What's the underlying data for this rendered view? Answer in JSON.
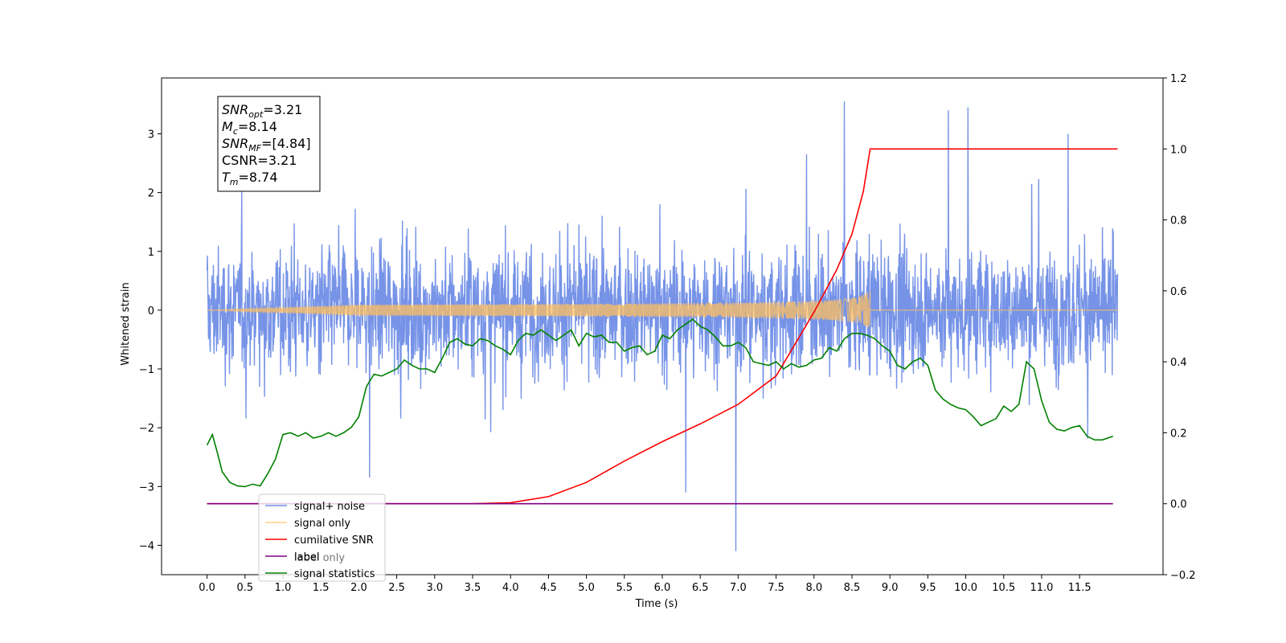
{
  "chart_data": {
    "type": "line",
    "title": "",
    "xlabel": "Time (s)",
    "ylabel": "Whitened strain",
    "y2label": "",
    "xlim": [
      -0.6,
      12.6
    ],
    "ylim": [
      -4.5,
      3.95
    ],
    "y2lim": [
      -0.2,
      1.2
    ],
    "xticks": [
      "0.0",
      "0.5",
      "1.0",
      "1.5",
      "2.0",
      "2.5",
      "3.0",
      "3.5",
      "4.0",
      "4.5",
      "5.0",
      "5.5",
      "6.0",
      "6.5",
      "7.0",
      "7.5",
      "8.0",
      "8.5",
      "9.0",
      "9.5",
      "10.0",
      "10.5",
      "11.0",
      "11.5"
    ],
    "yticks": [
      "−4",
      "−3",
      "−2",
      "−1",
      "0",
      "1",
      "2",
      "3"
    ],
    "y2ticks": [
      "−0.2",
      "0.0",
      "0.2",
      "0.4",
      "0.6",
      "0.8",
      "1.0",
      "1.2"
    ],
    "grid": false,
    "legend_position": "lower-left",
    "info_box": {
      "lines": [
        {
          "main": "SNR",
          "sub": "opt",
          "value": "=3.21"
        },
        {
          "main": "M",
          "sub": "c",
          "value": "=8.14"
        },
        {
          "main": "SNR",
          "sub": "MF",
          "value": "=[4.84]"
        },
        {
          "main": "CSNR",
          "sub": "",
          "value": "=3.21"
        },
        {
          "main": "T",
          "sub": "m",
          "value": "=8.74"
        }
      ]
    },
    "series": [
      {
        "name": "signal+ noise",
        "color": "#6f8de6",
        "axis": "left",
        "kind": "noise",
        "x_range": [
          0.0,
          12.0
        ],
        "envelope": [
          -2.0,
          2.3
        ],
        "outliers": [
          [
            6.97,
            -4.1
          ],
          [
            8.4,
            3.55
          ],
          [
            9.77,
            3.4
          ],
          [
            10.03,
            3.45
          ],
          [
            2.14,
            -2.85
          ],
          [
            6.31,
            -3.1
          ],
          [
            7.9,
            2.65
          ],
          [
            11.35,
            3.0
          ]
        ]
      },
      {
        "name": "signal only",
        "color": "#ffbf60",
        "axis": "left",
        "kind": "chirp",
        "x_range": [
          0.0,
          8.74
        ],
        "end_amplitude": 0.4
      },
      {
        "name": "cumilative SNR",
        "color": "#ff0000",
        "axis": "right",
        "x": [
          0.0,
          3.5,
          4.0,
          4.5,
          5.0,
          5.5,
          6.0,
          6.5,
          7.0,
          7.5,
          8.0,
          8.3,
          8.5,
          8.65,
          8.74,
          12.0
        ],
        "values": [
          0.0,
          0.0,
          0.003,
          0.02,
          0.06,
          0.12,
          0.175,
          0.225,
          0.28,
          0.36,
          0.54,
          0.66,
          0.76,
          0.88,
          1.0,
          1.0
        ]
      },
      {
        "name": "label",
        "color": "#800080",
        "axis": "right",
        "x": [
          0.0,
          11.94
        ],
        "values": [
          0.0,
          0.0
        ]
      },
      {
        "name": "label only",
        "color": "#d0d0d0",
        "axis": "right",
        "kind": "hidden",
        "x": [],
        "values": []
      },
      {
        "name": "signal statistics",
        "color": "#008000",
        "axis": "right",
        "x": [
          0.0,
          0.07,
          0.14,
          0.2,
          0.3,
          0.4,
          0.5,
          0.6,
          0.7,
          0.8,
          0.9,
          1.0,
          1.1,
          1.2,
          1.3,
          1.4,
          1.5,
          1.6,
          1.7,
          1.8,
          1.9,
          2.0,
          2.1,
          2.2,
          2.3,
          2.4,
          2.5,
          2.6,
          2.7,
          2.8,
          2.9,
          3.0,
          3.1,
          3.2,
          3.3,
          3.4,
          3.5,
          3.6,
          3.7,
          3.8,
          3.9,
          4.0,
          4.1,
          4.2,
          4.3,
          4.4,
          4.5,
          4.6,
          4.7,
          4.8,
          4.9,
          5.0,
          5.1,
          5.2,
          5.3,
          5.4,
          5.5,
          5.6,
          5.7,
          5.8,
          5.9,
          6.0,
          6.1,
          6.2,
          6.3,
          6.4,
          6.5,
          6.6,
          6.7,
          6.8,
          6.9,
          7.0,
          7.1,
          7.2,
          7.3,
          7.4,
          7.5,
          7.6,
          7.7,
          7.8,
          7.9,
          8.0,
          8.1,
          8.2,
          8.3,
          8.4,
          8.5,
          8.6,
          8.7,
          8.8,
          8.9,
          9.0,
          9.1,
          9.2,
          9.3,
          9.4,
          9.5,
          9.6,
          9.7,
          9.8,
          9.9,
          10.0,
          10.1,
          10.2,
          10.3,
          10.4,
          10.5,
          10.6,
          10.7,
          10.8,
          10.9,
          11.0,
          11.1,
          11.2,
          11.3,
          11.4,
          11.5,
          11.6,
          11.7,
          11.8,
          11.94
        ],
        "values": [
          0.165,
          0.195,
          0.14,
          0.09,
          0.06,
          0.05,
          0.048,
          0.055,
          0.05,
          0.085,
          0.125,
          0.195,
          0.2,
          0.19,
          0.2,
          0.185,
          0.19,
          0.2,
          0.19,
          0.2,
          0.215,
          0.245,
          0.33,
          0.365,
          0.36,
          0.37,
          0.38,
          0.405,
          0.39,
          0.38,
          0.38,
          0.37,
          0.41,
          0.455,
          0.465,
          0.45,
          0.445,
          0.465,
          0.46,
          0.445,
          0.435,
          0.42,
          0.46,
          0.48,
          0.475,
          0.49,
          0.475,
          0.46,
          0.475,
          0.49,
          0.445,
          0.48,
          0.47,
          0.475,
          0.455,
          0.455,
          0.43,
          0.44,
          0.445,
          0.42,
          0.43,
          0.475,
          0.465,
          0.49,
          0.505,
          0.52,
          0.5,
          0.49,
          0.47,
          0.445,
          0.445,
          0.455,
          0.44,
          0.4,
          0.395,
          0.39,
          0.4,
          0.38,
          0.395,
          0.385,
          0.39,
          0.405,
          0.41,
          0.44,
          0.43,
          0.465,
          0.48,
          0.48,
          0.475,
          0.465,
          0.445,
          0.43,
          0.39,
          0.38,
          0.4,
          0.41,
          0.39,
          0.32,
          0.295,
          0.28,
          0.27,
          0.265,
          0.245,
          0.22,
          0.23,
          0.24,
          0.275,
          0.26,
          0.28,
          0.4,
          0.38,
          0.29,
          0.23,
          0.21,
          0.205,
          0.215,
          0.22,
          0.19,
          0.18,
          0.18,
          0.19
        ]
      }
    ]
  }
}
